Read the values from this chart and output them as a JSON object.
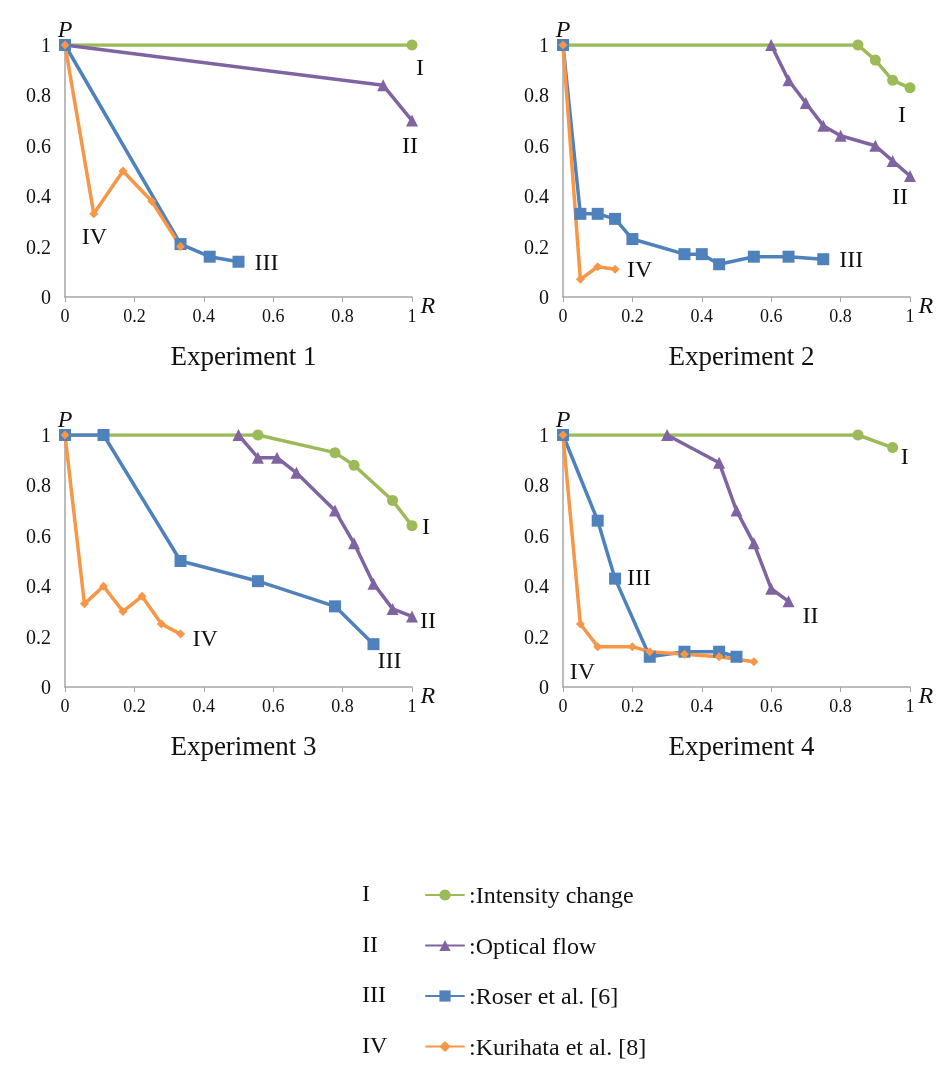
{
  "chart_data": [
    {
      "type": "line",
      "title": "Experiment 1",
      "xlabel": "R",
      "ylabel": "P",
      "xlim": [
        0,
        1
      ],
      "xticks": [
        0,
        0.2,
        0.4,
        0.6,
        0.8,
        1
      ],
      "ylim": [
        0,
        1
      ],
      "yticks": [
        0,
        0.2,
        0.4,
        0.6,
        0.8,
        1
      ],
      "grid": false,
      "legend": "bottom",
      "series": [
        {
          "name": ":Intensity change",
          "color": "#9bbb59",
          "marker": "circle",
          "x": [
            0,
            1
          ],
          "values": [
            1,
            1
          ]
        },
        {
          "name": ":Optical flow",
          "color": "#8064a2",
          "marker": "triangle",
          "x": [
            0,
            0.917,
            1
          ],
          "values": [
            1,
            0.84,
            0.7
          ]
        },
        {
          "name": ":Roser et al. [6]",
          "color": "#4f81bd",
          "marker": "square",
          "x": [
            0,
            0.333,
            0.417,
            0.5
          ],
          "values": [
            1,
            0.21,
            0.16,
            0.14
          ]
        },
        {
          "name": ":Kurihata et al. [8]",
          "color": "#f79646",
          "marker": "diamond",
          "x": [
            0,
            0.083,
            0.167,
            0.25,
            0.333
          ],
          "values": [
            1,
            0.33,
            0.5,
            0.38,
            0.2
          ]
        }
      ],
      "annotations": [
        {
          "text": "I",
          "x": 1,
          "y": 1
        },
        {
          "text": "II",
          "x": 1,
          "y": 0.7
        },
        {
          "text": "III",
          "x": 0.5,
          "y": 0.14
        },
        {
          "text": "IV",
          "x": 0.083,
          "y": 0.33
        }
      ]
    },
    {
      "type": "line",
      "title": "Experiment 2",
      "xlabel": "R",
      "ylabel": "P",
      "xlim": [
        0,
        1
      ],
      "xticks": [
        0,
        0.2,
        0.4,
        0.6,
        0.8,
        1
      ],
      "ylim": [
        0,
        1
      ],
      "yticks": [
        0,
        0.2,
        0.4,
        0.6,
        0.8,
        1
      ],
      "grid": false,
      "legend": "bottom",
      "series": [
        {
          "color": "#9bbb59",
          "marker": "circle",
          "x": [
            0,
            0.85,
            0.9,
            0.95,
            1
          ],
          "values": [
            1,
            1,
            0.94,
            0.86,
            0.83
          ]
        },
        {
          "color": "#8064a2",
          "marker": "triangle",
          "x": [
            0.6,
            0.65,
            0.7,
            0.75,
            0.8,
            0.9,
            0.95,
            1
          ],
          "values": [
            1,
            0.86,
            0.77,
            0.68,
            0.64,
            0.6,
            0.54,
            0.48
          ]
        },
        {
          "color": "#4f81bd",
          "marker": "square",
          "x": [
            0,
            0.05,
            0.1,
            0.15,
            0.2,
            0.35,
            0.4,
            0.45,
            0.55,
            0.65,
            0.75
          ],
          "values": [
            1,
            0.33,
            0.33,
            0.31,
            0.23,
            0.17,
            0.17,
            0.13,
            0.16,
            0.16,
            0.15
          ]
        },
        {
          "color": "#f79646",
          "marker": "diamond",
          "x": [
            0,
            0.05,
            0.1,
            0.15
          ],
          "values": [
            1,
            0.07,
            0.12,
            0.11
          ]
        }
      ],
      "annotations": [
        {
          "text": "I",
          "x": 1,
          "y": 0.83
        },
        {
          "text": "II",
          "x": 1,
          "y": 0.48
        },
        {
          "text": "III",
          "x": 0.75,
          "y": 0.15
        },
        {
          "text": "IV",
          "x": 0.15,
          "y": 0.11
        }
      ]
    },
    {
      "type": "line",
      "title": "Experiment 3",
      "xlabel": "R",
      "ylabel": "P",
      "xlim": [
        0,
        1
      ],
      "xticks": [
        0,
        0.2,
        0.4,
        0.6,
        0.8,
        1
      ],
      "ylim": [
        0,
        1
      ],
      "yticks": [
        0,
        0.2,
        0.4,
        0.6,
        0.8,
        1
      ],
      "grid": false,
      "legend": "bottom",
      "series": [
        {
          "color": "#9bbb59",
          "marker": "circle",
          "x": [
            0,
            0.556,
            0.778,
            0.833,
            0.944,
            1
          ],
          "values": [
            1,
            1,
            0.93,
            0.88,
            0.74,
            0.64
          ]
        },
        {
          "color": "#8064a2",
          "marker": "triangle",
          "x": [
            0.5,
            0.556,
            0.611,
            0.667,
            0.778,
            0.833,
            0.889,
            0.944,
            1
          ],
          "values": [
            1,
            0.91,
            0.91,
            0.85,
            0.7,
            0.57,
            0.41,
            0.31,
            0.28
          ]
        },
        {
          "color": "#4f81bd",
          "marker": "square",
          "x": [
            0,
            0.111,
            0.333,
            0.556,
            0.778,
            0.889
          ],
          "values": [
            1,
            1,
            0.5,
            0.42,
            0.32,
            0.17
          ]
        },
        {
          "color": "#f79646",
          "marker": "diamond",
          "x": [
            0,
            0.056,
            0.111,
            0.167,
            0.222,
            0.278,
            0.333
          ],
          "values": [
            1,
            0.33,
            0.4,
            0.3,
            0.36,
            0.25,
            0.21
          ]
        }
      ],
      "annotations": [
        {
          "text": "I",
          "x": 1,
          "y": 0.64
        },
        {
          "text": "II",
          "x": 1,
          "y": 0.28
        },
        {
          "text": "III",
          "x": 0.889,
          "y": 0.17
        },
        {
          "text": "IV",
          "x": 0.333,
          "y": 0.21
        }
      ]
    },
    {
      "type": "line",
      "title": "Experiment 4",
      "xlabel": "R",
      "ylabel": "P",
      "xlim": [
        0,
        1
      ],
      "xticks": [
        0,
        0.2,
        0.4,
        0.6,
        0.8,
        1
      ],
      "ylim": [
        0,
        1
      ],
      "yticks": [
        0,
        0.2,
        0.4,
        0.6,
        0.8,
        1
      ],
      "grid": false,
      "legend": "bottom",
      "series": [
        {
          "color": "#9bbb59",
          "marker": "circle",
          "x": [
            0,
            0.85,
            0.95
          ],
          "values": [
            1,
            1,
            0.95
          ]
        },
        {
          "color": "#8064a2",
          "marker": "triangle",
          "x": [
            0.3,
            0.45,
            0.5,
            0.55,
            0.6,
            0.65
          ],
          "values": [
            1,
            0.89,
            0.7,
            0.57,
            0.39,
            0.34
          ]
        },
        {
          "color": "#4f81bd",
          "marker": "square",
          "x": [
            0,
            0.1,
            0.15,
            0.25,
            0.35,
            0.45,
            0.5
          ],
          "values": [
            1,
            0.66,
            0.43,
            0.12,
            0.14,
            0.14,
            0.12
          ]
        },
        {
          "color": "#f79646",
          "marker": "diamond",
          "x": [
            0,
            0.05,
            0.1,
            0.2,
            0.25,
            0.35,
            0.45,
            0.55
          ],
          "values": [
            1,
            0.25,
            0.16,
            0.16,
            0.14,
            0.13,
            0.12,
            0.1
          ]
        }
      ],
      "annotations": [
        {
          "text": "I",
          "x": 0.95,
          "y": 0.95
        },
        {
          "text": "II",
          "x": 0.65,
          "y": 0.34
        },
        {
          "text": "III",
          "x": 0.15,
          "y": 0.43
        },
        {
          "text": "IV",
          "x": 0.1,
          "y": 0.16
        }
      ]
    }
  ]
}
